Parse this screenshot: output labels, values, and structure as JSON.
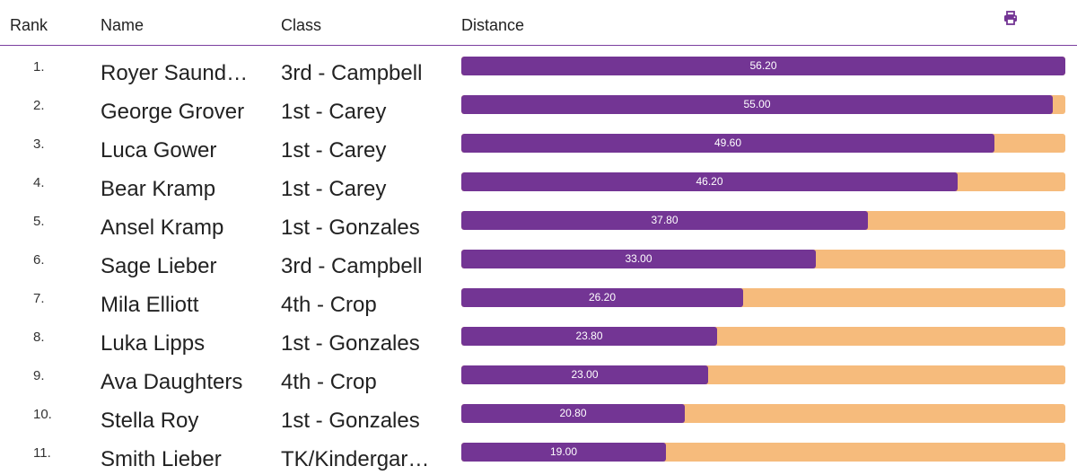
{
  "header": {
    "rank": "Rank",
    "name": "Name",
    "class": "Class",
    "distance": "Distance",
    "print_icon": "printer-icon"
  },
  "colors": {
    "accent": "#733594",
    "track": "#f6bb7c"
  },
  "max_distance": 56.2,
  "rows": [
    {
      "rank": "1.",
      "name": "Royer Saund…",
      "class": "3rd - Campbell",
      "distance": "56.20"
    },
    {
      "rank": "2.",
      "name": "George Grover",
      "class": "1st - Carey",
      "distance": "55.00"
    },
    {
      "rank": "3.",
      "name": "Luca Gower",
      "class": "1st - Carey",
      "distance": "49.60"
    },
    {
      "rank": "4.",
      "name": "Bear Kramp",
      "class": "1st - Carey",
      "distance": "46.20"
    },
    {
      "rank": "5.",
      "name": "Ansel Kramp",
      "class": "1st - Gonzales",
      "distance": "37.80"
    },
    {
      "rank": "6.",
      "name": "Sage Lieber",
      "class": "3rd - Campbell",
      "distance": "33.00"
    },
    {
      "rank": "7.",
      "name": "Mila Elliott",
      "class": "4th - Crop",
      "distance": "26.20"
    },
    {
      "rank": "8.",
      "name": "Luka Lipps",
      "class": "1st - Gonzales",
      "distance": "23.80"
    },
    {
      "rank": "9.",
      "name": "Ava Daughters",
      "class": "4th - Crop",
      "distance": "23.00"
    },
    {
      "rank": "10.",
      "name": "Stella Roy",
      "class": "1st - Gonzales",
      "distance": "20.80"
    },
    {
      "rank": "11.",
      "name": "Smith Lieber",
      "class": "TK/Kindergar…",
      "distance": "19.00"
    }
  ]
}
